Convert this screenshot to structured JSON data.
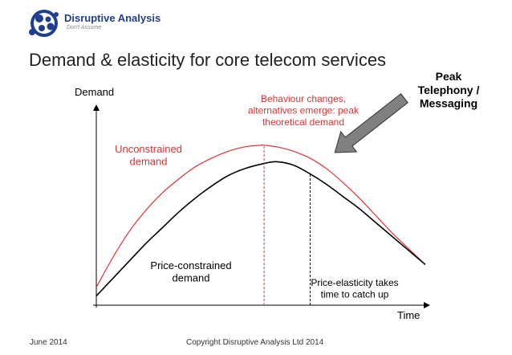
{
  "header": {
    "logo_name": "Disruptive Analysis",
    "logo_tagline": "Don't Assume",
    "slide_title": "Demand & elasticity for core telecom services"
  },
  "footer": {
    "date": "June 2014",
    "copyright": "Copyright Disruptive Analysis Ltd 2014"
  },
  "colors": {
    "brand_blue": "#1e3f8f",
    "unconstrained": "#e03030",
    "constrained": "#000000",
    "arrow": "#808080"
  },
  "chart_data": {
    "type": "line",
    "title": "",
    "ylabel": "Demand",
    "xlabel": "Time",
    "grid": false,
    "series": [
      {
        "name": "Unconstrained demand",
        "color": "#e03030",
        "label_lines": [
          "Unconstrained",
          "demand"
        ],
        "x": [
          0,
          0.05,
          0.1,
          0.15,
          0.2,
          0.25,
          0.3,
          0.35,
          0.4,
          0.45,
          0.5,
          0.51,
          0.55,
          0.6,
          0.65,
          0.7,
          0.75,
          0.8,
          0.85,
          0.9,
          0.95,
          1.0
        ],
        "y": [
          0.08,
          0.25,
          0.4,
          0.52,
          0.62,
          0.7,
          0.77,
          0.82,
          0.86,
          0.885,
          0.895,
          0.895,
          0.885,
          0.86,
          0.82,
          0.76,
          0.68,
          0.59,
          0.49,
          0.39,
          0.3,
          0.21
        ]
      },
      {
        "name": "Price-constrained demand",
        "color": "#000000",
        "label_lines": [
          "Price-constrained",
          "demand"
        ],
        "x": [
          0,
          0.05,
          0.1,
          0.15,
          0.2,
          0.25,
          0.3,
          0.35,
          0.4,
          0.45,
          0.51,
          0.55,
          0.6,
          0.65,
          0.7,
          0.75,
          0.8,
          0.85,
          0.9,
          0.95,
          1.0
        ],
        "y": [
          0.03,
          0.13,
          0.23,
          0.33,
          0.42,
          0.51,
          0.59,
          0.66,
          0.72,
          0.76,
          0.79,
          0.8,
          0.78,
          0.73,
          0.67,
          0.6,
          0.53,
          0.45,
          0.37,
          0.29,
          0.21
        ]
      }
    ],
    "markers": [
      {
        "x": 0.51,
        "color": "#e03030",
        "dash": true,
        "label_lines": [
          "Behaviour changes,",
          "alternatives emerge: peak",
          "theoretical demand"
        ]
      },
      {
        "x": 0.65,
        "color": "#000000",
        "dash": true,
        "label_lines": [
          "Price-elasticity takes",
          "time to catch up"
        ]
      }
    ],
    "annotation": {
      "label_lines": [
        "Peak",
        "Telephony /",
        "Messaging"
      ],
      "points_to_x": 0.72
    }
  }
}
